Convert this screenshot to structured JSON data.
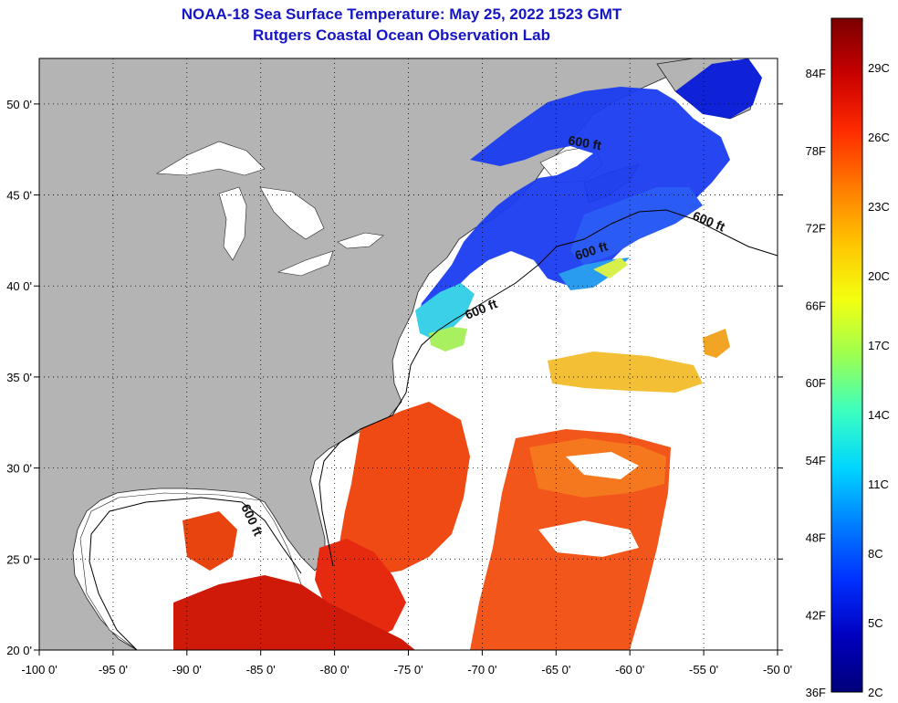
{
  "title": {
    "line1": "NOAA-18 Sea Surface Temperature:  May 25, 2022 1523 GMT",
    "line2": "Rutgers Coastal Ocean Observation Lab"
  },
  "map": {
    "longitude_labels": [
      "-100 0'",
      "-95 0'",
      "-90 0'",
      "-85 0'",
      "-80 0'",
      "-75 0'",
      "-70 0'",
      "-65 0'",
      "-60 0'",
      "-55 0'",
      "-50 0'"
    ],
    "latitude_labels": [
      "50 0'",
      "45 0'",
      "40 0'",
      "35 0'",
      "30 0'",
      "25 0'",
      "20 0'"
    ],
    "lon_range": [
      -100,
      -50
    ],
    "lat_range": [
      20,
      52.5
    ],
    "contour_label": "600 ft",
    "land_color": "#b4b4b4",
    "ocean_nodata_color": "#ffffff"
  },
  "colorbar": {
    "fahrenheit_labels": [
      "84F",
      "78F",
      "72F",
      "66F",
      "60F",
      "54F",
      "48F",
      "42F",
      "36F"
    ],
    "celsius_labels": [
      "29C",
      "26C",
      "23C",
      "20C",
      "17C",
      "14C",
      "11C",
      "8C",
      "5C",
      "2C"
    ],
    "scale_colors": [
      "#7a0000",
      "#c80000",
      "#ff2a00",
      "#ff7a00",
      "#ffc400",
      "#f4ff10",
      "#9cff50",
      "#3cffc0",
      "#00d6ff",
      "#0080ff",
      "#0030ff",
      "#0000c0",
      "#00007a"
    ]
  }
}
